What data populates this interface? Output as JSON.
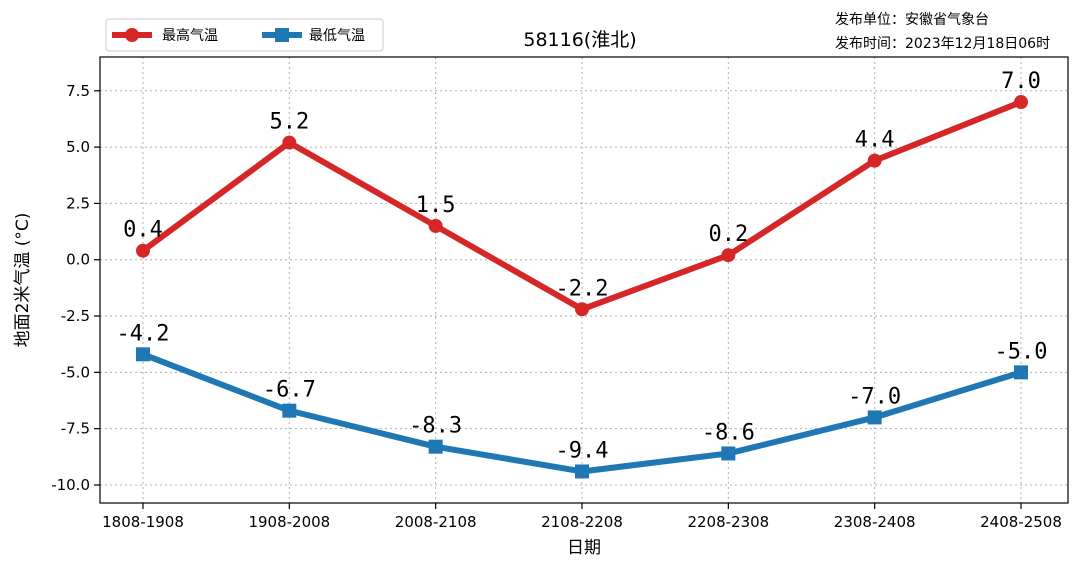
{
  "chart_data": {
    "type": "line",
    "title": "58116(淮北)",
    "publisher": "发布单位：安徽省气象台",
    "publish_time": "发布时间：2023年12月18日06时",
    "xlabel": "日期",
    "ylabel": "地面2米气温 (°C)",
    "categories": [
      "1808-1908",
      "1908-2008",
      "2008-2108",
      "2108-2208",
      "2208-2308",
      "2308-2408",
      "2408-2508"
    ],
    "ylim": [
      -10.8,
      9.0
    ],
    "yticks": [
      7.5,
      5.0,
      2.5,
      0.0,
      -2.5,
      -5.0,
      -7.5,
      -10.0
    ],
    "ytick_labels": [
      "7.5",
      "5.0",
      "2.5",
      "0.0",
      "-2.5",
      "-5.0",
      "-7.5",
      "-10.0"
    ],
    "grid": true,
    "legend_position": "top-left",
    "series": [
      {
        "name": "最高气温",
        "color": "#d62728",
        "marker": "circle",
        "values": [
          0.4,
          5.2,
          1.5,
          -2.2,
          0.2,
          4.4,
          7.0
        ],
        "labels": [
          "0.4",
          "5.2",
          "1.5",
          "-2.2",
          "0.2",
          "4.4",
          "7.0"
        ]
      },
      {
        "name": "最低气温",
        "color": "#1f77b4",
        "marker": "square",
        "values": [
          -4.2,
          -6.7,
          -8.3,
          -9.4,
          -8.6,
          -7.0,
          -5.0
        ],
        "labels": [
          "-4.2",
          "-6.7",
          "-8.3",
          "-9.4",
          "-8.6",
          "-7.0",
          "-5.0"
        ]
      }
    ]
  }
}
